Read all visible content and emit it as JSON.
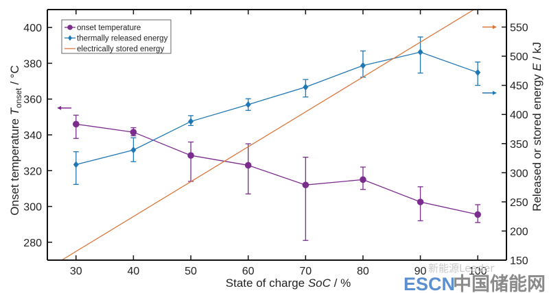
{
  "chart_data": {
    "type": "line",
    "title": "",
    "xlabel": "State of charge",
    "xlabel_italic": "SoC",
    "xlabel_unit": " / %",
    "ylabel_left": "Onset temperature",
    "ylabel_left_symbol": "T",
    "ylabel_left_subscript": "onset",
    "ylabel_left_unit": " / °C",
    "ylabel_right": "Released or stored energy",
    "ylabel_right_symbol": "E",
    "ylabel_right_unit": " / kJ",
    "xlim": [
      25,
      105
    ],
    "ylim_left": [
      270,
      410
    ],
    "ylim_right": [
      150,
      580
    ],
    "x_ticks": [
      30,
      40,
      50,
      60,
      70,
      80,
      90,
      100
    ],
    "y_ticks_left": [
      280,
      300,
      320,
      340,
      360,
      380,
      400
    ],
    "y_ticks_right": [
      150,
      200,
      250,
      300,
      350,
      400,
      450,
      500,
      550
    ],
    "grid": false,
    "legend_position": "top-left",
    "series": [
      {
        "name": "onset temperature",
        "axis": "left",
        "color": "#7b2d8e",
        "marker": "circle",
        "x": [
          30,
          40,
          50,
          60,
          70,
          80,
          90,
          100
        ],
        "y": [
          346,
          341.5,
          328.5,
          323,
          312,
          315,
          302.5,
          295.5
        ],
        "err_low": [
          338,
          339.5,
          314,
          307,
          281,
          309.5,
          292,
          291
        ],
        "err_high": [
          351,
          344,
          336,
          335,
          327.5,
          322,
          311,
          301
        ]
      },
      {
        "name": "thermally released energy",
        "axis": "right",
        "color": "#1f77b4",
        "marker": "diamond",
        "x": [
          30,
          40,
          50,
          60,
          70,
          80,
          90,
          100
        ],
        "y": [
          314,
          339,
          388,
          417,
          447,
          484,
          507,
          472
        ],
        "err_low": [
          280,
          319,
          381,
          407,
          430,
          464,
          471,
          450
        ],
        "err_high": [
          336,
          360,
          398,
          427,
          460,
          509,
          533,
          490
        ]
      },
      {
        "name": "electrically stored energy",
        "axis": "right",
        "color": "#d9773b",
        "marker": "none",
        "x": [
          27.5,
          100
        ],
        "y": [
          150,
          584
        ]
      }
    ],
    "annotations": [
      {
        "type": "arrow",
        "direction": "left",
        "series": "onset temperature",
        "x": 28,
        "y_left": 355
      },
      {
        "type": "arrow",
        "direction": "right",
        "series": "electrically stored energy",
        "x": 102,
        "y_right": 550
      },
      {
        "type": "arrow",
        "direction": "right",
        "series": "thermally released energy",
        "x": 102,
        "y_right": 437
      }
    ]
  },
  "watermark": {
    "line1": "新能源Leader",
    "brand_latin": "ESCN",
    "brand_cn": "中国储能网"
  }
}
